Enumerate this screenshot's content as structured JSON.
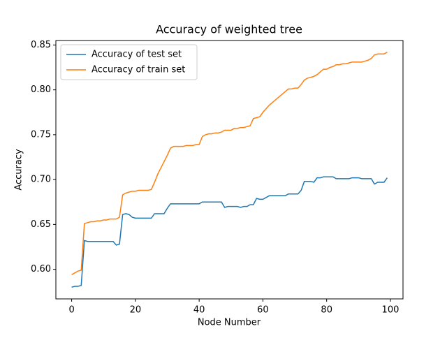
{
  "chart_data": {
    "type": "line",
    "title": "Accuracy of weighted tree",
    "x_label": "Node Number",
    "y_label": "Accuracy",
    "x": [
      0,
      1,
      2,
      3,
      4,
      5,
      6,
      7,
      8,
      9,
      10,
      11,
      12,
      13,
      14,
      15,
      16,
      17,
      18,
      19,
      20,
      21,
      22,
      23,
      24,
      25,
      26,
      27,
      28,
      29,
      30,
      31,
      32,
      33,
      34,
      35,
      36,
      37,
      38,
      39,
      40,
      41,
      42,
      43,
      44,
      45,
      46,
      47,
      48,
      49,
      50,
      51,
      52,
      53,
      54,
      55,
      56,
      57,
      58,
      59,
      60,
      61,
      62,
      63,
      64,
      65,
      66,
      67,
      68,
      69,
      70,
      71,
      72,
      73,
      74,
      75,
      76,
      77,
      78,
      79,
      80,
      81,
      82,
      83,
      84,
      85,
      86,
      87,
      88,
      89,
      90,
      91,
      92,
      93,
      94,
      95,
      96,
      97,
      98,
      99
    ],
    "series": [
      {
        "name": "Accuracy of test set",
        "color": "#1f77b4",
        "values": [
          0.58,
          0.581,
          0.581,
          0.582,
          0.632,
          0.631,
          0.631,
          0.631,
          0.631,
          0.631,
          0.631,
          0.631,
          0.631,
          0.631,
          0.627,
          0.628,
          0.661,
          0.662,
          0.661,
          0.658,
          0.657,
          0.657,
          0.657,
          0.657,
          0.657,
          0.657,
          0.662,
          0.662,
          0.662,
          0.662,
          0.668,
          0.673,
          0.673,
          0.673,
          0.673,
          0.673,
          0.673,
          0.673,
          0.673,
          0.673,
          0.673,
          0.675,
          0.675,
          0.675,
          0.675,
          0.675,
          0.675,
          0.675,
          0.669,
          0.67,
          0.67,
          0.67,
          0.67,
          0.669,
          0.67,
          0.67,
          0.672,
          0.672,
          0.679,
          0.678,
          0.678,
          0.68,
          0.682,
          0.682,
          0.682,
          0.682,
          0.682,
          0.682,
          0.684,
          0.684,
          0.684,
          0.684,
          0.688,
          0.698,
          0.698,
          0.698,
          0.697,
          0.702,
          0.702,
          0.703,
          0.703,
          0.703,
          0.703,
          0.701,
          0.701,
          0.701,
          0.701,
          0.701,
          0.702,
          0.702,
          0.702,
          0.701,
          0.701,
          0.701,
          0.701,
          0.695,
          0.697,
          0.697,
          0.697,
          0.702
        ]
      },
      {
        "name": "Accuracy of train set",
        "color": "#ff7f0e",
        "values": [
          0.594,
          0.596,
          0.598,
          0.599,
          0.651,
          0.652,
          0.653,
          0.653,
          0.654,
          0.654,
          0.655,
          0.655,
          0.656,
          0.656,
          0.656,
          0.658,
          0.683,
          0.685,
          0.686,
          0.687,
          0.687,
          0.688,
          0.688,
          0.688,
          0.688,
          0.689,
          0.697,
          0.706,
          0.713,
          0.72,
          0.727,
          0.735,
          0.737,
          0.737,
          0.737,
          0.737,
          0.738,
          0.738,
          0.738,
          0.739,
          0.739,
          0.748,
          0.75,
          0.751,
          0.751,
          0.752,
          0.752,
          0.753,
          0.755,
          0.755,
          0.755,
          0.757,
          0.757,
          0.758,
          0.758,
          0.759,
          0.76,
          0.768,
          0.769,
          0.77,
          0.775,
          0.779,
          0.783,
          0.786,
          0.789,
          0.792,
          0.795,
          0.798,
          0.801,
          0.801,
          0.802,
          0.802,
          0.806,
          0.811,
          0.813,
          0.814,
          0.815,
          0.817,
          0.82,
          0.823,
          0.823,
          0.825,
          0.826,
          0.828,
          0.828,
          0.829,
          0.829,
          0.83,
          0.831,
          0.831,
          0.831,
          0.831,
          0.832,
          0.833,
          0.835,
          0.839,
          0.84,
          0.84,
          0.84,
          0.842
        ]
      }
    ],
    "xlim": [
      -4.95,
      103.95
    ],
    "ylim": [
      0.567,
      0.855
    ],
    "xticks": [
      0,
      20,
      40,
      60,
      80,
      100
    ],
    "yticks": [
      {
        "value": 0.6,
        "label": "0.60"
      },
      0.65,
      {
        "value": 0.7,
        "label": "0.70"
      },
      0.75,
      {
        "value": 0.8,
        "label": "0.80"
      },
      0.85
    ],
    "legend": "upper left"
  }
}
